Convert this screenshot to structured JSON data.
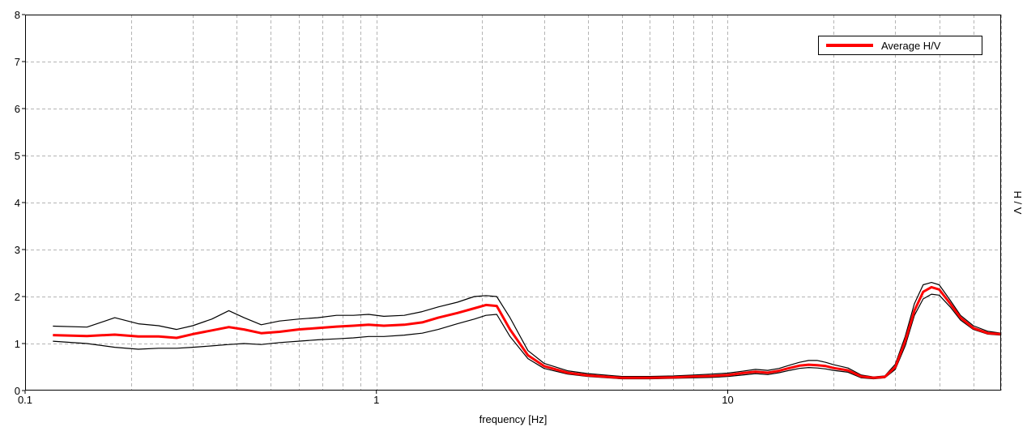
{
  "chart_data": {
    "type": "line",
    "title": "",
    "xlabel": "frequency [Hz]",
    "ylabel": "H / V",
    "x_scale": "log",
    "xlim": [
      0.1,
      60
    ],
    "ylim": [
      0,
      8
    ],
    "grid": true,
    "legend_placement": "top-right",
    "x_tick_labels": [
      {
        "value": 0.1,
        "label": "0.1"
      },
      {
        "value": 1,
        "label": "1"
      },
      {
        "value": 10,
        "label": "10"
      }
    ],
    "y_tick_labels": [
      {
        "value": 0,
        "label": "0"
      },
      {
        "value": 1,
        "label": "1"
      },
      {
        "value": 2,
        "label": "2"
      },
      {
        "value": 3,
        "label": "3"
      },
      {
        "value": 4,
        "label": "4"
      },
      {
        "value": 5,
        "label": "5"
      },
      {
        "value": 6,
        "label": "6"
      },
      {
        "value": 7,
        "label": "7"
      },
      {
        "value": 8,
        "label": "8"
      }
    ],
    "x": [
      0.12,
      0.15,
      0.18,
      0.21,
      0.24,
      0.27,
      0.3,
      0.34,
      0.38,
      0.42,
      0.47,
      0.53,
      0.6,
      0.68,
      0.77,
      0.86,
      0.95,
      1.05,
      1.2,
      1.35,
      1.5,
      1.7,
      1.9,
      2.05,
      2.2,
      2.4,
      2.7,
      3.0,
      3.5,
      4.0,
      5.0,
      6.0,
      7.0,
      8.0,
      9.0,
      10.0,
      11.0,
      12.0,
      13.0,
      14.0,
      15.0,
      16.0,
      17.0,
      18.0,
      19.0,
      20.0,
      22.0,
      24.0,
      26.0,
      28.0,
      30.0,
      32.0,
      34.0,
      36.0,
      38.0,
      40.0,
      43.0,
      46.0,
      50.0,
      55.0,
      60.0
    ],
    "series": [
      {
        "name": "Average H/V",
        "color": "#ff0000",
        "values": [
          1.18,
          1.16,
          1.19,
          1.15,
          1.15,
          1.12,
          1.2,
          1.28,
          1.35,
          1.3,
          1.22,
          1.25,
          1.3,
          1.33,
          1.36,
          1.38,
          1.4,
          1.38,
          1.4,
          1.45,
          1.55,
          1.65,
          1.75,
          1.82,
          1.8,
          1.3,
          0.75,
          0.52,
          0.38,
          0.32,
          0.27,
          0.27,
          0.28,
          0.3,
          0.31,
          0.33,
          0.37,
          0.4,
          0.38,
          0.42,
          0.48,
          0.53,
          0.55,
          0.54,
          0.52,
          0.48,
          0.43,
          0.3,
          0.27,
          0.29,
          0.5,
          1.05,
          1.7,
          2.1,
          2.2,
          2.15,
          1.85,
          1.55,
          1.33,
          1.22,
          1.2
        ]
      },
      {
        "color": "#000000",
        "values": [
          1.37,
          1.35,
          1.55,
          1.42,
          1.38,
          1.3,
          1.38,
          1.52,
          1.7,
          1.55,
          1.4,
          1.48,
          1.52,
          1.55,
          1.6,
          1.6,
          1.62,
          1.58,
          1.6,
          1.68,
          1.78,
          1.88,
          2.0,
          2.02,
          2.0,
          1.55,
          0.85,
          0.58,
          0.42,
          0.36,
          0.3,
          0.3,
          0.31,
          0.33,
          0.35,
          0.37,
          0.41,
          0.45,
          0.43,
          0.47,
          0.54,
          0.6,
          0.64,
          0.64,
          0.6,
          0.55,
          0.48,
          0.33,
          0.29,
          0.31,
          0.56,
          1.15,
          1.85,
          2.25,
          2.3,
          2.25,
          1.92,
          1.6,
          1.38,
          1.26,
          1.22
        ]
      },
      {
        "color": "#000000",
        "values": [
          1.05,
          1.0,
          0.92,
          0.88,
          0.9,
          0.9,
          0.92,
          0.95,
          0.98,
          1.0,
          0.98,
          1.02,
          1.05,
          1.08,
          1.1,
          1.12,
          1.15,
          1.15,
          1.18,
          1.22,
          1.3,
          1.42,
          1.52,
          1.6,
          1.62,
          1.15,
          0.68,
          0.47,
          0.35,
          0.3,
          0.25,
          0.25,
          0.26,
          0.27,
          0.28,
          0.3,
          0.33,
          0.36,
          0.34,
          0.38,
          0.43,
          0.47,
          0.49,
          0.48,
          0.46,
          0.43,
          0.39,
          0.27,
          0.25,
          0.27,
          0.45,
          0.95,
          1.6,
          1.95,
          2.05,
          2.03,
          1.78,
          1.5,
          1.3,
          1.2,
          1.18
        ]
      }
    ]
  }
}
